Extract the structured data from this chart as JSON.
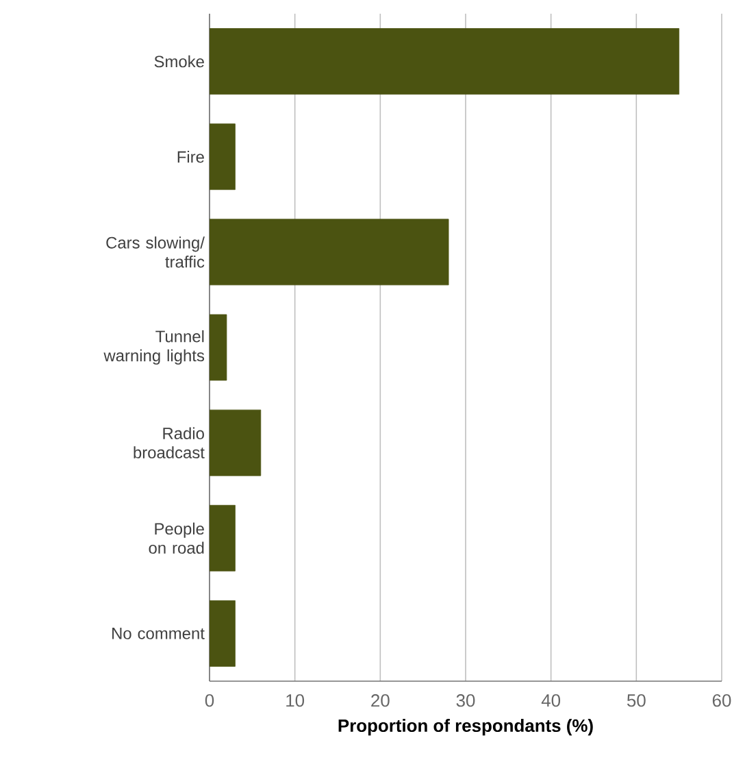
{
  "chart_data": {
    "type": "bar",
    "orientation": "horizontal",
    "categories": [
      "Smoke",
      "Fire",
      "Cars slowing/\ntraffic",
      "Tunnel\nwarning lights",
      "Radio\nbroadcast",
      "People\non road",
      "No comment"
    ],
    "values": [
      55,
      3,
      28,
      2,
      6,
      3,
      3
    ],
    "color": "#4b5311",
    "xlabel": "Proportion of respondants (%)",
    "xlim": [
      0,
      60
    ],
    "xticks": [
      0,
      10,
      20,
      30,
      40,
      50,
      60
    ],
    "grid": "x"
  }
}
